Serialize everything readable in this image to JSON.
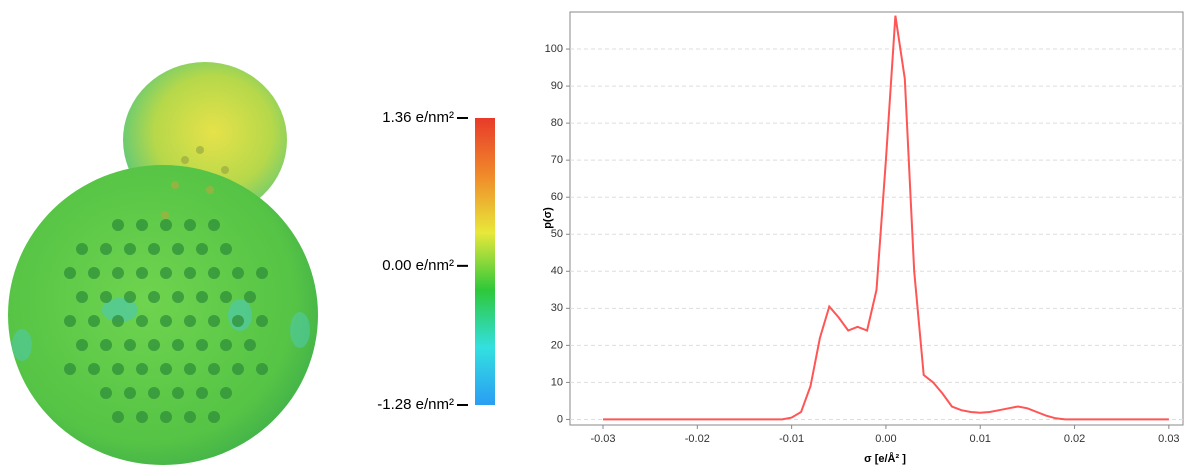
{
  "chart_data": [
    {
      "type": "line",
      "y_label": "p(σ)",
      "x_label": "σ [e/Å² ]",
      "x": [
        -0.03,
        -0.029,
        -0.028,
        -0.027,
        -0.026,
        -0.025,
        -0.024,
        -0.023,
        -0.022,
        -0.021,
        -0.02,
        -0.019,
        -0.018,
        -0.017,
        -0.016,
        -0.015,
        -0.014,
        -0.013,
        -0.012,
        -0.011,
        -0.01,
        -0.009,
        -0.008,
        -0.007,
        -0.006,
        -0.005,
        -0.004,
        -0.003,
        -0.002,
        -0.001,
        0,
        0.001,
        0.002,
        0.003,
        0.004,
        0.005,
        0.006,
        0.007,
        0.008,
        0.009,
        0.01,
        0.011,
        0.012,
        0.013,
        0.014,
        0.015,
        0.016,
        0.017,
        0.018,
        0.019,
        0.02,
        0.021,
        0.022,
        0.023,
        0.024,
        0.025,
        0.026,
        0.027,
        0.028,
        0.029,
        0.03
      ],
      "values": [
        0,
        0,
        0,
        0,
        0,
        0,
        0,
        0,
        0,
        0,
        0,
        0,
        0,
        0,
        0,
        0,
        0,
        0,
        0,
        0,
        0.5,
        2,
        9,
        22,
        30.5,
        27.5,
        24,
        25,
        24,
        35,
        70,
        109,
        92,
        40,
        12,
        10,
        7,
        3.5,
        2.5,
        2,
        1.8,
        2,
        2.5,
        3,
        3.5,
        3,
        2,
        1,
        0.3,
        0,
        0,
        0,
        0,
        0,
        0,
        0,
        0,
        0,
        0,
        0,
        0
      ],
      "color": "#ff5555",
      "xlim": [
        -0.0335,
        0.0315
      ],
      "ylim": [
        -1.5,
        110
      ],
      "xticks": [
        -0.03,
        -0.02,
        -0.01,
        {
          "value": 0,
          "label": "0.00"
        },
        0.01,
        0.02,
        0.03
      ],
      "yticks": [
        0,
        10,
        20,
        30,
        40,
        50,
        60,
        70,
        80,
        90,
        100
      ],
      "grid": true
    },
    {
      "type": "colorbar",
      "ylim": [
        -1.28,
        1.36
      ],
      "colors": [
        "#2a9df4",
        "#33e0e0",
        "#2ec83a",
        "#e8e83a",
        "#f08a2a",
        "#e83a2a"
      ],
      "yticks": [
        {
          "value": 1.36,
          "label": "1.36 e/nm²"
        },
        {
          "value": 0,
          "label": "0.00 e/nm²"
        },
        {
          "value": -1.28,
          "label": "-1.28 e/nm²"
        }
      ]
    }
  ]
}
